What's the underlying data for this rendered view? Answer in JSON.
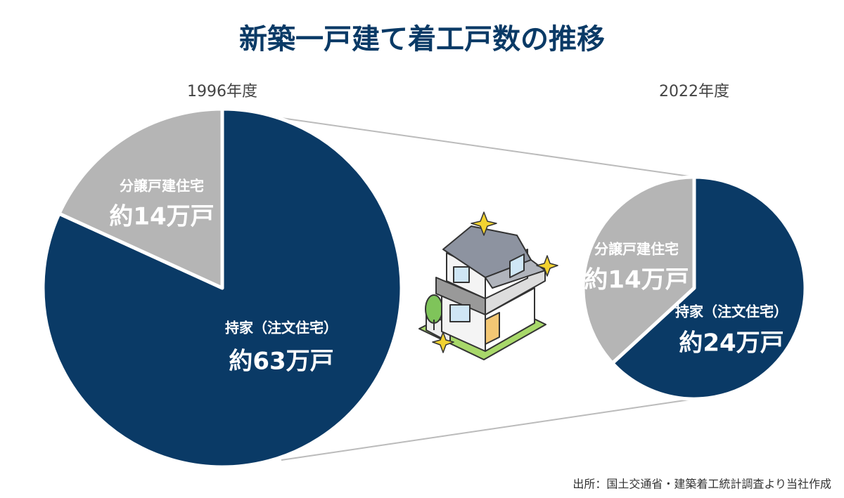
{
  "title": "新築一戸建て着工戸数の推移",
  "source": "出所：国土交通省・建築着工統計調査より当社作成",
  "chart_data": [
    {
      "type": "pie",
      "subtitle": "1996年度",
      "categories": [
        "持家（注文住宅）",
        "分譲戸建住宅"
      ],
      "values": [
        63,
        14
      ],
      "value_labels": [
        "約63万戸",
        "約14万戸"
      ],
      "colors": [
        "#0a3a66",
        "#b5b5b5"
      ]
    },
    {
      "type": "pie",
      "subtitle": "2022年度",
      "categories": [
        "持家（注文住宅）",
        "分譲戸建住宅"
      ],
      "values": [
        24,
        14
      ],
      "value_labels": [
        "約24万戸",
        "約14万戸"
      ],
      "colors": [
        "#0a3a66",
        "#b5b5b5"
      ]
    }
  ]
}
